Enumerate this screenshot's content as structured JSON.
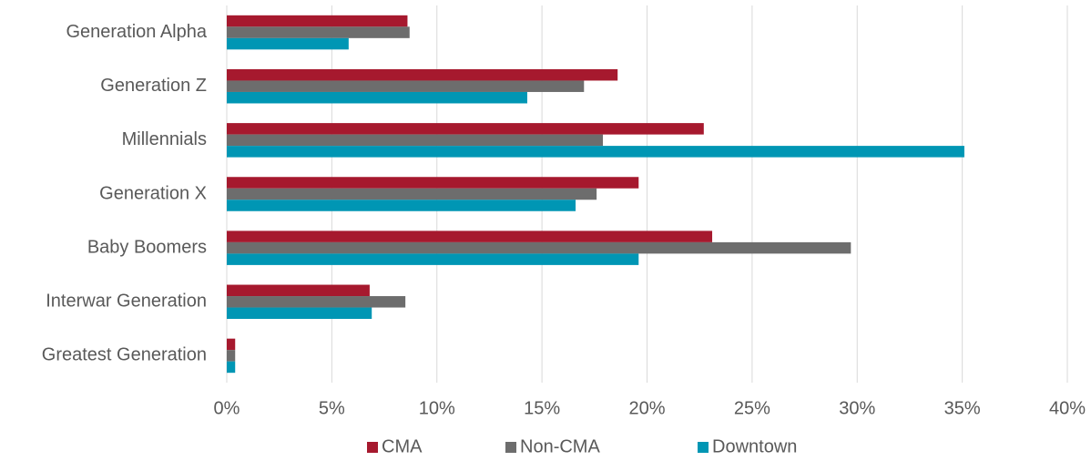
{
  "chart_data": {
    "type": "hbar",
    "categories": [
      "Generation Alpha",
      "Generation Z",
      "Millennials",
      "Generation X",
      "Baby Boomers",
      "Interwar Generation",
      "Greatest Generation"
    ],
    "series": [
      {
        "name": "CMA",
        "color": "#a6192e",
        "values": [
          8.6,
          18.6,
          22.7,
          19.6,
          23.1,
          6.8,
          0.4
        ]
      },
      {
        "name": "Non-CMA",
        "color": "#6d6d6d",
        "values": [
          8.7,
          17.0,
          17.9,
          17.6,
          29.7,
          8.5,
          0.4
        ]
      },
      {
        "name": "Downtown",
        "color": "#0096b4",
        "values": [
          5.8,
          14.3,
          35.1,
          16.6,
          19.6,
          6.9,
          0.4
        ]
      }
    ],
    "xlim": [
      0,
      40
    ],
    "xticks": [
      {
        "value": 0,
        "label": "0%"
      },
      {
        "value": 5,
        "label": "5%"
      },
      {
        "value": 10,
        "label": "10%"
      },
      {
        "value": 15,
        "label": "15%"
      },
      {
        "value": 20,
        "label": "20%"
      },
      {
        "value": 25,
        "label": "25%"
      },
      {
        "value": 30,
        "label": "30%"
      },
      {
        "value": 35,
        "label": "35%"
      },
      {
        "value": 40,
        "label": "40%"
      }
    ],
    "grid": true,
    "legend": "bottom"
  }
}
